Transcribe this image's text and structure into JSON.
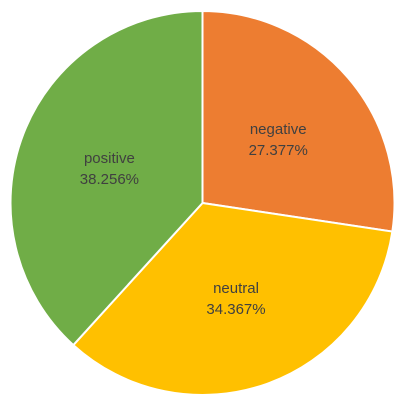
{
  "chart_data": {
    "type": "pie",
    "start_angle_deg": 0,
    "direction": "clockwise",
    "legend": "none",
    "slices": [
      {
        "name": "negative",
        "value": 27.377,
        "label": "27.377%",
        "color": "#ED7D31"
      },
      {
        "name": "neutral",
        "value": 34.367,
        "label": "34.367%",
        "color": "#FFC000"
      },
      {
        "name": "positive",
        "value": 38.256,
        "label": "38.256%",
        "color": "#70AD47"
      }
    ]
  }
}
